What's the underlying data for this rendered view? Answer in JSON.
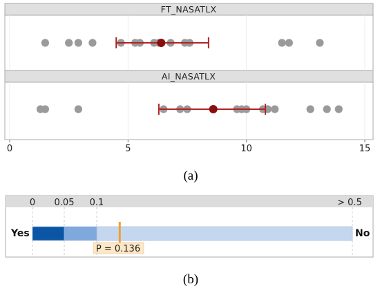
{
  "chart_data": [
    {
      "type": "scatter",
      "caption": "(a)",
      "xlim": [
        0,
        15
      ],
      "x_ticks": [
        0,
        5,
        10,
        15
      ],
      "grid": true,
      "panels": [
        {
          "title": "FT_NASATLX",
          "points": [
            1.5,
            2.5,
            2.9,
            3.5,
            4.7,
            5.3,
            5.5,
            6.1,
            6.3,
            6.4,
            6.8,
            7.4,
            7.6,
            11.5,
            11.8,
            13.1
          ],
          "mean": 6.4,
          "ci": [
            4.5,
            8.4
          ]
        },
        {
          "title": "AI_NASATLX",
          "points": [
            1.3,
            1.5,
            2.9,
            6.5,
            7.2,
            7.5,
            8.6,
            9.6,
            9.8,
            10.0,
            10.7,
            10.9,
            11.2,
            12.7,
            13.4,
            13.9
          ],
          "mean": 8.6,
          "ci": [
            6.3,
            10.8
          ]
        }
      ]
    },
    {
      "type": "bar",
      "caption": "(b)",
      "left_label": "Yes",
      "right_label": "No",
      "scale_ticks": [
        "0",
        "0.05",
        "0.1",
        "> 0.5"
      ],
      "scale_tick_values": [
        0,
        0.05,
        0.1,
        0.5
      ],
      "segments": [
        {
          "from": 0,
          "to": 0.05,
          "color": "#0b56a4"
        },
        {
          "from": 0.05,
          "to": 0.1,
          "color": "#7fa8dc"
        },
        {
          "from": 0.1,
          "to": 0.5,
          "color": "#c5d7ef"
        }
      ],
      "p_value": 0.136,
      "p_label": "P = 0.136"
    }
  ],
  "colors": {
    "point": "#9a9a9a",
    "mean": "#8b0d0d",
    "ci": "#b22222",
    "strip_bg": "#e0e0e0",
    "marker": "#f0a02a",
    "label_box": "#fde7c6"
  }
}
